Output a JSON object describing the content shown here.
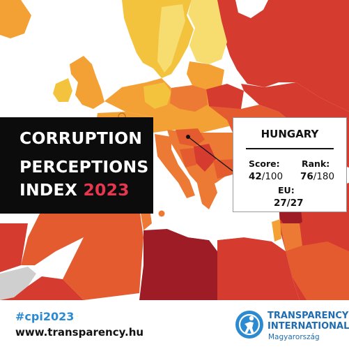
{
  "title": {
    "line1": "CORRUPTION",
    "line2": "PERCEPTIONS",
    "line3_prefix": "INDEX ",
    "year": "2023"
  },
  "country_card": {
    "country": "HUNGARY",
    "score_label": "Score:",
    "score_value": "42",
    "score_max": "/100",
    "rank_label": "Rank:",
    "rank_value": "76",
    "rank_max": "/180",
    "eu_label": "EU:",
    "eu_value": "27/27"
  },
  "footer": {
    "hashtag": "#cpi2023",
    "website": "www.transparency.hu"
  },
  "organization": {
    "name_line1": "TRANSPARENCY",
    "name_line2": "INTERNATIONAL",
    "subtitle": "Magyarország"
  },
  "colors": {
    "title_accent": "#e6374f",
    "brand_blue": "#1f6db0",
    "hashtag_blue": "#2b8ad0",
    "map_sea": "#ffffff",
    "score_very_high": "#f7dc6f",
    "score_high": "#f3c33d",
    "score_mid_high": "#f3a035",
    "score_mid": "#ec7a34",
    "score_mid_low": "#e45b2f",
    "score_low": "#d63b30",
    "score_very_low": "#9d1c25",
    "no_data": "#cfcfcf"
  }
}
